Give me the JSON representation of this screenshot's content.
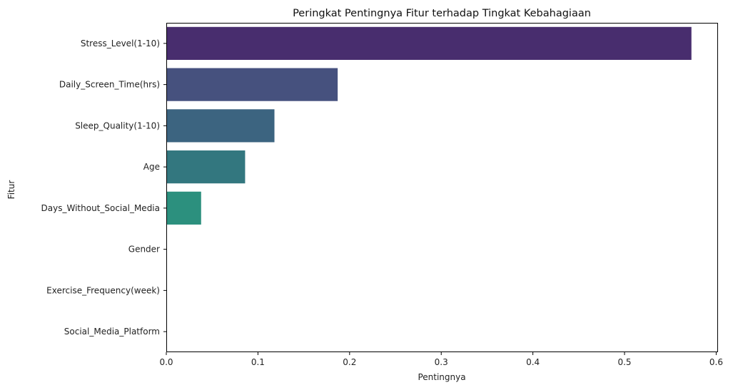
{
  "chart_data": {
    "type": "bar",
    "orientation": "horizontal",
    "title": "Peringkat Pentingnya Fitur terhadap Tingkat Kebahagiaan",
    "xlabel": "Pentingnya",
    "ylabel": "Fitur",
    "categories": [
      "Stress_Level(1-10)",
      "Daily_Screen_Time(hrs)",
      "Sleep_Quality(1-10)",
      "Age",
      "Days_Without_Social_Media",
      "Gender",
      "Exercise_Frequency(week)",
      "Social_Media_Platform"
    ],
    "values": [
      0.573,
      0.187,
      0.118,
      0.086,
      0.038,
      0.0,
      0.0,
      0.0
    ],
    "colors": [
      "#482D6E",
      "#46517E",
      "#3C6480",
      "#33777F",
      "#2C907E",
      "#24A67F",
      "#33B07A",
      "#4FC170"
    ],
    "xlim": [
      0,
      0.602
    ],
    "xticks": [
      0.0,
      0.1,
      0.2,
      0.3,
      0.4,
      0.5,
      0.6
    ],
    "xtick_labels": [
      "0.0",
      "0.1",
      "0.2",
      "0.3",
      "0.4",
      "0.5",
      "0.6"
    ],
    "grid": false,
    "legend": "none"
  }
}
